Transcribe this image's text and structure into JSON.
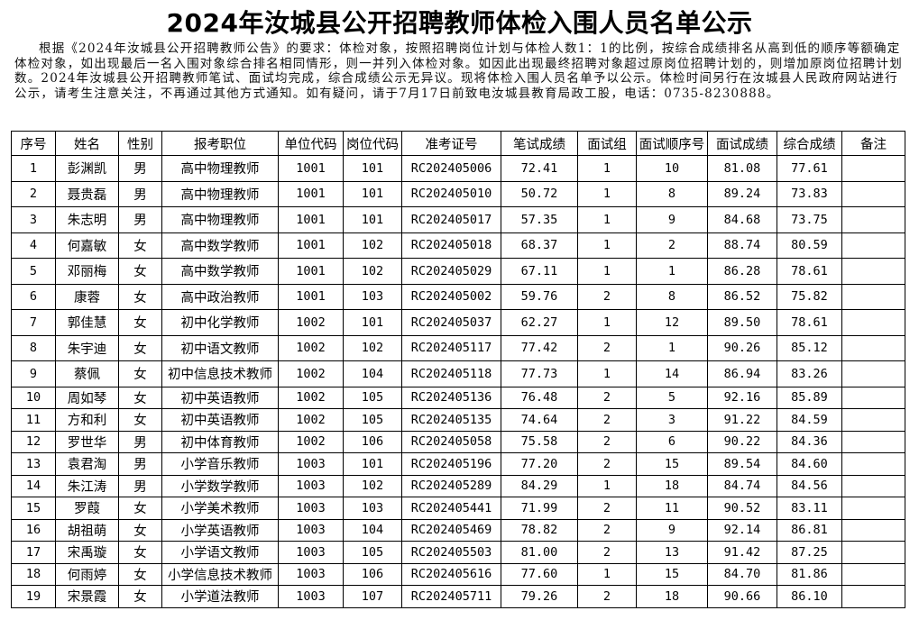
{
  "title": "2024年汝城县公开招聘教师体检入围人员名单公示",
  "intro": "根据《2024年汝城县公开招聘教师公告》的要求：体检对象，按照招聘岗位计划与体检人数1：1的比例，按综合成绩排名从高到低的顺序等额确定体检对象，如出现最后一名入围对象综合排名相同情形，则一并列入体检对象。如因此出现最终招聘对象超过原岗位招聘计划的，则增加原岗位招聘计划数。2024年汝城县公开招聘教师笔试、面试均完成，综合成绩公示无异议。现将体检入围人员名单予以公示。体检时间另行在汝城县人民政府网站进行公示，请考生注意关注，不再通过其他方式通知。如有疑问，请于7月17日前致电汝城县教育局政工股，电话：0735-8230888。",
  "table": {
    "headers": [
      "序号",
      "姓名",
      "性别",
      "报考职位",
      "单位代码",
      "岗位代码",
      "准考证号",
      "笔试成绩",
      "面试组",
      "面试顺序号",
      "面试成绩",
      "综合成绩",
      "备注"
    ],
    "rows": [
      [
        "1",
        "彭渊凯",
        "男",
        "高中物理教师",
        "1001",
        "101",
        "RC202405006",
        "72.41",
        "1",
        "10",
        "81.08",
        "77.61",
        ""
      ],
      [
        "2",
        "聂贵磊",
        "男",
        "高中物理教师",
        "1001",
        "101",
        "RC202405010",
        "50.72",
        "1",
        "8",
        "89.24",
        "73.83",
        ""
      ],
      [
        "3",
        "朱志明",
        "男",
        "高中物理教师",
        "1001",
        "101",
        "RC202405017",
        "57.35",
        "1",
        "9",
        "84.68",
        "73.75",
        ""
      ],
      [
        "4",
        "何嘉敏",
        "女",
        "高中数学教师",
        "1001",
        "102",
        "RC202405018",
        "68.37",
        "1",
        "2",
        "88.74",
        "80.59",
        ""
      ],
      [
        "5",
        "邓丽梅",
        "女",
        "高中数学教师",
        "1001",
        "102",
        "RC202405029",
        "67.11",
        "1",
        "1",
        "86.28",
        "78.61",
        ""
      ],
      [
        "6",
        "康蓉",
        "女",
        "高中政治教师",
        "1001",
        "103",
        "RC202405002",
        "59.76",
        "2",
        "8",
        "86.52",
        "75.82",
        ""
      ],
      [
        "7",
        "郭佳慧",
        "女",
        "初中化学教师",
        "1002",
        "101",
        "RC202405037",
        "62.27",
        "1",
        "12",
        "89.50",
        "78.61",
        ""
      ],
      [
        "8",
        "朱宇迪",
        "女",
        "初中语文教师",
        "1002",
        "102",
        "RC202405117",
        "77.42",
        "2",
        "1",
        "90.26",
        "85.12",
        ""
      ],
      [
        "9",
        "蔡佩",
        "女",
        "初中信息技术教师",
        "1002",
        "104",
        "RC202405118",
        "77.73",
        "1",
        "14",
        "86.94",
        "83.26",
        ""
      ],
      [
        "10",
        "周如琴",
        "女",
        "初中英语教师",
        "1002",
        "105",
        "RC202405136",
        "76.48",
        "2",
        "5",
        "92.16",
        "85.89",
        ""
      ],
      [
        "11",
        "方和利",
        "女",
        "初中英语教师",
        "1002",
        "105",
        "RC202405135",
        "74.64",
        "2",
        "3",
        "91.22",
        "84.59",
        ""
      ],
      [
        "12",
        "罗世华",
        "男",
        "初中体育教师",
        "1002",
        "106",
        "RC202405058",
        "75.58",
        "2",
        "6",
        "90.22",
        "84.36",
        ""
      ],
      [
        "13",
        "袁君淘",
        "男",
        "小学音乐教师",
        "1003",
        "101",
        "RC202405196",
        "77.20",
        "2",
        "15",
        "89.54",
        "84.60",
        ""
      ],
      [
        "14",
        "朱江涛",
        "男",
        "小学数学教师",
        "1003",
        "102",
        "RC202405289",
        "84.29",
        "1",
        "18",
        "84.74",
        "84.56",
        ""
      ],
      [
        "15",
        "罗葭",
        "女",
        "小学美术教师",
        "1003",
        "103",
        "RC202405441",
        "71.99",
        "2",
        "11",
        "90.52",
        "83.11",
        ""
      ],
      [
        "16",
        "胡祖萌",
        "女",
        "小学英语教师",
        "1003",
        "104",
        "RC202405469",
        "78.82",
        "2",
        "9",
        "92.14",
        "86.81",
        ""
      ],
      [
        "17",
        "宋禹璇",
        "女",
        "小学语文教师",
        "1003",
        "105",
        "RC202405503",
        "81.00",
        "2",
        "13",
        "91.42",
        "87.25",
        ""
      ],
      [
        "18",
        "何雨婷",
        "女",
        "小学信息技术教师",
        "1003",
        "106",
        "RC202405616",
        "77.60",
        "1",
        "15",
        "84.70",
        "81.86",
        ""
      ],
      [
        "19",
        "宋景霞",
        "女",
        "小学道法教师",
        "1003",
        "107",
        "RC202405711",
        "79.26",
        "2",
        "18",
        "90.66",
        "86.10",
        ""
      ]
    ]
  }
}
